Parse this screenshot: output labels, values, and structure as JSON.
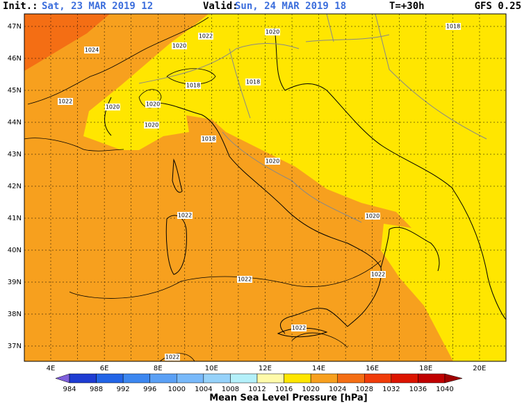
{
  "header": {
    "init_label": "Init.:",
    "init_value": "Sat, 23 MAR 2019  12",
    "valid_label": "Valid:",
    "valid_value": "Sun, 24 MAR 2019  18",
    "lead": "T=+30h",
    "model": "GFS 0.25"
  },
  "map": {
    "lat_labels": [
      "47N",
      "46N",
      "45N",
      "44N",
      "43N",
      "42N",
      "41N",
      "40N",
      "39N",
      "38N",
      "37N"
    ],
    "lon_labels": [
      "4E",
      "6E",
      "8E",
      "10E",
      "12E",
      "14E",
      "16E",
      "18E",
      "20E"
    ],
    "contour_labels": [
      "1024",
      "1022",
      "1020",
      "1020",
      "1018",
      "1018",
      "1018",
      "1020",
      "1020",
      "1022",
      "1020",
      "1018",
      "1020",
      "1022",
      "1020",
      "1022",
      "1022",
      "1022",
      "1022"
    ]
  },
  "colorbar": {
    "labels": [
      "984",
      "988",
      "992",
      "996",
      "1000",
      "1004",
      "1008",
      "1012",
      "1016",
      "1020",
      "1024",
      "1028",
      "1032",
      "1036",
      "1040"
    ],
    "colors": [
      "#7f5fdc",
      "#1e3cd2",
      "#2264e6",
      "#3c87f0",
      "#5aa0f5",
      "#78b9fa",
      "#96d2fa",
      "#b4f0fa",
      "#fffaaa",
      "#ffe600",
      "#f7a01e",
      "#f46e14",
      "#f03c0a",
      "#dc1400",
      "#c00000",
      "#a00000"
    ],
    "title": "Mean Sea Level Pressure [hPa]"
  }
}
